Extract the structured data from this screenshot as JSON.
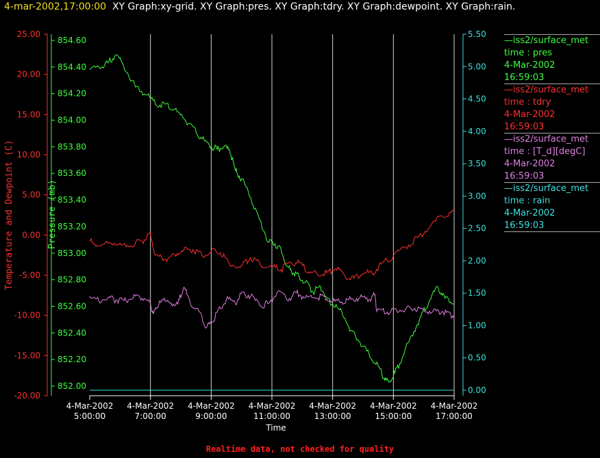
{
  "header": {
    "timestamp": "4-mar-2002,17:00:00",
    "graphs": "XY Graph:xy-grid.  XY Graph:pres.  XY Graph:tdry.  XY Graph:dewpoint.  XY Graph:rain."
  },
  "legend": [
    {
      "title": "iss2/surface_met",
      "var": "time : pres",
      "date": "4-Mar-2002",
      "time": "16:59:03",
      "color": "#40ff40"
    },
    {
      "title": "iss2/surface_met",
      "var": "time : tdry",
      "date": "4-Mar-2002",
      "time": "16:59:03",
      "color": "#ff3030"
    },
    {
      "title": "iss2/surface_met",
      "var": "time : [T_d][degC]",
      "date": "4-Mar-2002",
      "time": "16:59:03",
      "color": "#e080e0"
    },
    {
      "title": "iss2/surface_met",
      "var": "time : rain",
      "date": "4-Mar-2002",
      "time": "16:59:03",
      "color": "#40e0e0"
    }
  ],
  "footer": "Realtime data, not checked for quality",
  "chart_data": {
    "type": "line",
    "xlabel": "Time",
    "x_ticks": [
      {
        "date": "4-Mar-2002",
        "time": "5:00:00",
        "hour": 5
      },
      {
        "date": "4-Mar-2002",
        "time": "7:00:00",
        "hour": 7
      },
      {
        "date": "4-Mar-2002",
        "time": "9:00:00",
        "hour": 9
      },
      {
        "date": "4-Mar-2002",
        "time": "11:00:00",
        "hour": 11
      },
      {
        "date": "4-Mar-2002",
        "time": "13:00:00",
        "hour": 13
      },
      {
        "date": "4-Mar-2002",
        "time": "15:00:00",
        "hour": 15
      },
      {
        "date": "4-Mar-2002",
        "time": "17:00:00",
        "hour": 17
      }
    ],
    "xlim_hours": [
      5,
      17
    ],
    "grid_x": true,
    "axes": {
      "temp": {
        "label": "Temperature and Dewpoint (C)",
        "range": [
          -20,
          25
        ],
        "color": "#ff3030",
        "ticks": [
          "25.00",
          "20.00",
          "15.00",
          "10.00",
          "5.00",
          "0.00",
          "-5.00",
          "-10.00",
          "-15.00",
          "-20.00"
        ]
      },
      "pres": {
        "label": "Pressure (mb)",
        "range": [
          851.95,
          854.65
        ],
        "color": "#40ff40",
        "ticks": [
          "854.60",
          "854.40",
          "854.20",
          "854.00",
          "853.80",
          "853.60",
          "853.40",
          "853.20",
          "853.00",
          "852.80",
          "852.60",
          "852.40",
          "852.20",
          "852.00"
        ]
      },
      "rain": {
        "label": "",
        "range": [
          -0.1,
          5.5
        ],
        "color": "#40e0e0",
        "ticks": [
          "5.50",
          "5.00",
          "4.50",
          "4.00",
          "3.50",
          "3.00",
          "2.50",
          "2.00",
          "1.50",
          "1.00",
          "0.50",
          "0.00"
        ]
      }
    },
    "series": [
      {
        "name": "time : pres",
        "axis": "pres",
        "color": "#40ff40",
        "points": [
          [
            5.0,
            854.38
          ],
          [
            5.3,
            854.4
          ],
          [
            5.6,
            854.43
          ],
          [
            5.85,
            854.49
          ],
          [
            6.1,
            854.42
          ],
          [
            6.5,
            854.25
          ],
          [
            6.9,
            854.19
          ],
          [
            7.2,
            854.11
          ],
          [
            7.5,
            854.12
          ],
          [
            7.8,
            854.08
          ],
          [
            8.1,
            854.01
          ],
          [
            8.4,
            853.95
          ],
          [
            8.7,
            853.86
          ],
          [
            9.0,
            853.8
          ],
          [
            9.2,
            853.78
          ],
          [
            9.4,
            853.8
          ],
          [
            9.6,
            853.78
          ],
          [
            9.8,
            853.62
          ],
          [
            10.0,
            853.56
          ],
          [
            10.3,
            853.42
          ],
          [
            10.6,
            853.25
          ],
          [
            10.9,
            853.08
          ],
          [
            11.1,
            853.07
          ],
          [
            11.3,
            853.03
          ],
          [
            11.5,
            852.9
          ],
          [
            11.7,
            852.85
          ],
          [
            11.9,
            852.82
          ],
          [
            12.1,
            852.78
          ],
          [
            12.35,
            852.71
          ],
          [
            12.6,
            852.75
          ],
          [
            12.8,
            852.67
          ],
          [
            13.0,
            852.61
          ],
          [
            13.3,
            852.56
          ],
          [
            13.6,
            852.42
          ],
          [
            13.9,
            852.33
          ],
          [
            14.2,
            852.24
          ],
          [
            14.5,
            852.15
          ],
          [
            14.7,
            852.06
          ],
          [
            14.85,
            852.03
          ],
          [
            15.05,
            852.1
          ],
          [
            15.3,
            852.22
          ],
          [
            15.6,
            852.38
          ],
          [
            15.9,
            852.52
          ],
          [
            16.2,
            852.65
          ],
          [
            16.45,
            852.75
          ],
          [
            16.7,
            852.66
          ],
          [
            17.0,
            852.62
          ]
        ]
      },
      {
        "name": "time : tdry",
        "axis": "temp",
        "color": "#ff3030",
        "points": [
          [
            5.0,
            -0.8
          ],
          [
            5.4,
            -1.2
          ],
          [
            5.8,
            -1.0
          ],
          [
            6.2,
            -1.5
          ],
          [
            6.5,
            -1.0
          ],
          [
            6.8,
            -0.6
          ],
          [
            7.0,
            0.3
          ],
          [
            7.15,
            -2.5
          ],
          [
            7.5,
            -3.0
          ],
          [
            7.8,
            -2.4
          ],
          [
            8.1,
            -1.8
          ],
          [
            8.4,
            -1.8
          ],
          [
            8.7,
            -2.6
          ],
          [
            9.0,
            -2.0
          ],
          [
            9.3,
            -2.2
          ],
          [
            9.6,
            -3.6
          ],
          [
            10.0,
            -3.8
          ],
          [
            10.3,
            -2.8
          ],
          [
            10.6,
            -3.5
          ],
          [
            11.0,
            -4.0
          ],
          [
            11.3,
            -4.3
          ],
          [
            11.6,
            -3.4
          ],
          [
            11.9,
            -3.4
          ],
          [
            12.2,
            -4.6
          ],
          [
            12.5,
            -4.9
          ],
          [
            12.8,
            -4.7
          ],
          [
            13.1,
            -4.2
          ],
          [
            13.4,
            -5.0
          ],
          [
            13.7,
            -5.4
          ],
          [
            14.0,
            -4.8
          ],
          [
            14.3,
            -4.7
          ],
          [
            14.6,
            -3.6
          ],
          [
            15.0,
            -2.6
          ],
          [
            15.4,
            -1.5
          ],
          [
            15.8,
            -0.3
          ],
          [
            16.2,
            1.0
          ],
          [
            16.6,
            2.4
          ],
          [
            17.0,
            2.9
          ]
        ]
      },
      {
        "name": "time : [T_d][degC]",
        "axis": "temp",
        "color": "#e080e0",
        "points": [
          [
            5.0,
            -7.6
          ],
          [
            5.3,
            -8.2
          ],
          [
            5.6,
            -7.8
          ],
          [
            5.9,
            -8.1
          ],
          [
            6.2,
            -8.2
          ],
          [
            6.5,
            -7.6
          ],
          [
            6.8,
            -7.9
          ],
          [
            7.0,
            -8.5
          ],
          [
            7.1,
            -9.8
          ],
          [
            7.3,
            -8.2
          ],
          [
            7.6,
            -8.3
          ],
          [
            7.9,
            -8.6
          ],
          [
            8.1,
            -6.5
          ],
          [
            8.3,
            -8.3
          ],
          [
            8.6,
            -9.5
          ],
          [
            8.85,
            -11.5
          ],
          [
            9.0,
            -11.0
          ],
          [
            9.2,
            -9.6
          ],
          [
            9.5,
            -8.0
          ],
          [
            9.8,
            -8.5
          ],
          [
            10.0,
            -7.2
          ],
          [
            10.3,
            -7.6
          ],
          [
            10.6,
            -8.8
          ],
          [
            10.9,
            -8.5
          ],
          [
            11.2,
            -7.0
          ],
          [
            11.5,
            -8.1
          ],
          [
            11.8,
            -7.2
          ],
          [
            12.1,
            -7.8
          ],
          [
            12.4,
            -7.8
          ],
          [
            12.7,
            -7.6
          ],
          [
            13.0,
            -8.3
          ],
          [
            13.3,
            -8.3
          ],
          [
            13.6,
            -8.0
          ],
          [
            13.9,
            -7.8
          ],
          [
            14.2,
            -8.0
          ],
          [
            14.4,
            -7.4
          ],
          [
            14.45,
            -9.5
          ],
          [
            14.8,
            -9.6
          ],
          [
            15.1,
            -9.3
          ],
          [
            15.4,
            -9.2
          ],
          [
            15.7,
            -9.1
          ],
          [
            16.0,
            -9.3
          ],
          [
            16.3,
            -9.5
          ],
          [
            16.6,
            -9.5
          ],
          [
            16.9,
            -10.0
          ],
          [
            17.0,
            -9.9
          ]
        ]
      },
      {
        "name": "time : rain",
        "axis": "rain",
        "color": "#40e0e0",
        "points": [
          [
            5.0,
            0.0
          ],
          [
            17.0,
            0.0
          ]
        ]
      }
    ]
  }
}
